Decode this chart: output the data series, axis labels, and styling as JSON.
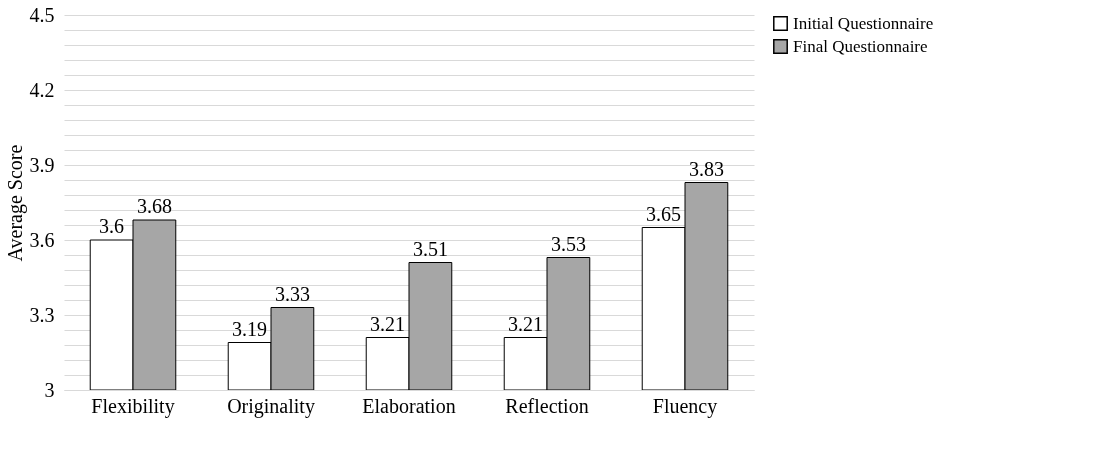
{
  "chart_data": {
    "type": "bar",
    "ylabel": "Average Score",
    "categories": [
      "Flexibility",
      "Originality",
      "Elaboration",
      "Reflection",
      "Fluency"
    ],
    "series": [
      {
        "name": "Initial Questionnaire",
        "color": "#ffffff",
        "values": [
          3.6,
          3.19,
          3.21,
          3.21,
          3.65
        ]
      },
      {
        "name": "Final Questionnaire",
        "color": "#a6a6a6",
        "values": [
          3.68,
          3.33,
          3.51,
          3.53,
          3.83
        ]
      }
    ],
    "ylim": [
      3,
      4.5
    ],
    "yticks": [
      3,
      {
        "value": 3.06,
        "label": null
      },
      {
        "value": 3.12,
        "label": null
      },
      {
        "value": 3.18,
        "label": null
      },
      {
        "value": 3.24,
        "label": null
      },
      3.3,
      {
        "value": 3.36,
        "label": null
      },
      {
        "value": 3.42,
        "label": null
      },
      {
        "value": 3.48,
        "label": null
      },
      {
        "value": 3.54,
        "label": null
      },
      3.6,
      {
        "value": 3.66,
        "label": null
      },
      {
        "value": 3.72,
        "label": null
      },
      {
        "value": 3.78,
        "label": null
      },
      {
        "value": 3.84,
        "label": null
      },
      3.9,
      {
        "value": 3.96,
        "label": null
      },
      {
        "value": 4.02,
        "label": null
      },
      {
        "value": 4.08,
        "label": null
      },
      {
        "value": 4.14,
        "label": null
      },
      4.2,
      {
        "value": 4.26,
        "label": null
      },
      {
        "value": 4.32,
        "label": null
      },
      {
        "value": 4.38,
        "label": null
      },
      {
        "value": 4.44,
        "label": null
      },
      4.5
    ],
    "grid": "y",
    "legend": "right",
    "data_labels": true
  }
}
